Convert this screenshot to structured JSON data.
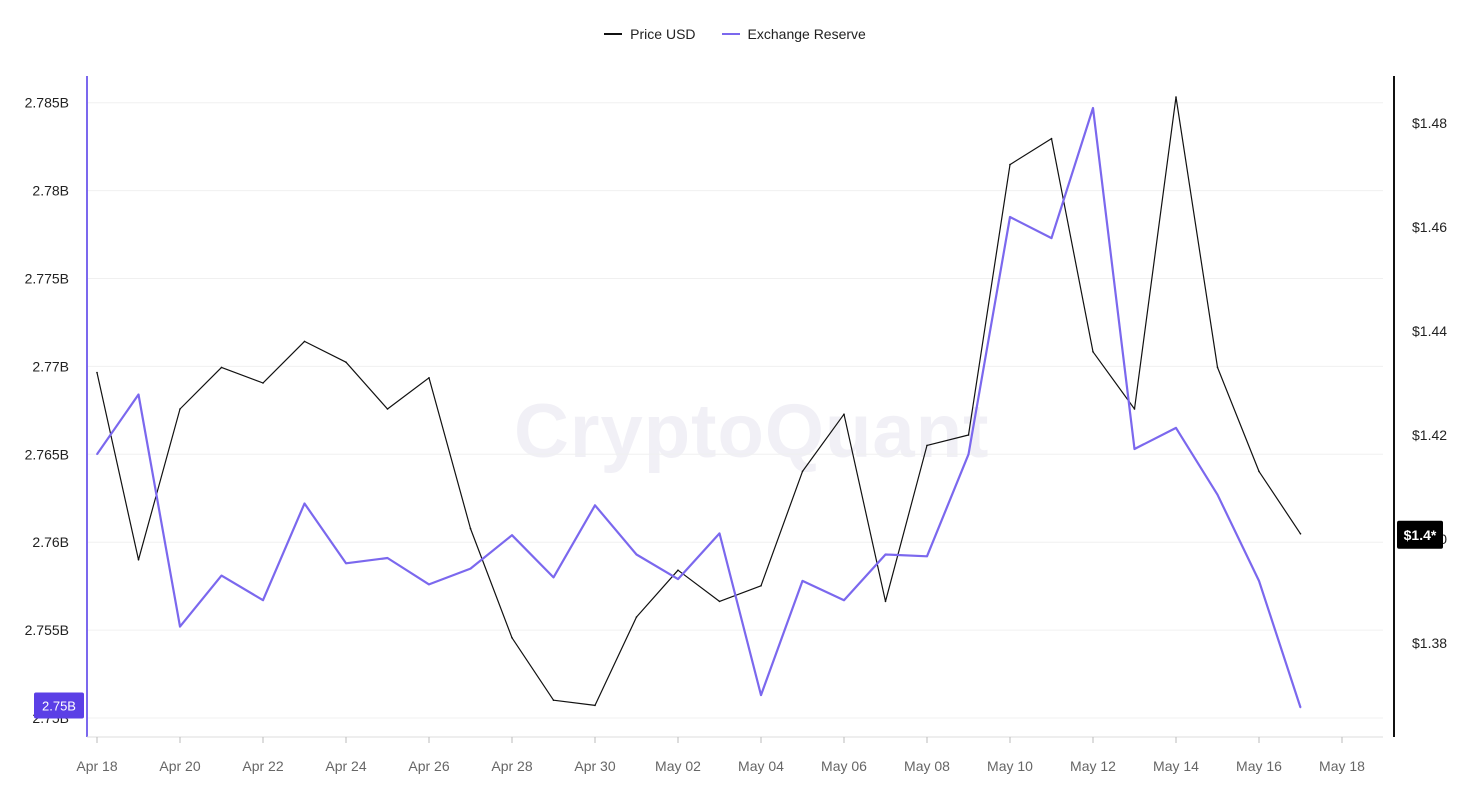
{
  "chart_data": {
    "type": "line",
    "watermark": "CryptoQuant",
    "x": [
      "Apr 18",
      "Apr 19",
      "Apr 20",
      "Apr 21",
      "Apr 22",
      "Apr 23",
      "Apr 24",
      "Apr 25",
      "Apr 26",
      "Apr 27",
      "Apr 28",
      "Apr 29",
      "Apr 30",
      "May 01",
      "May 02",
      "May 03",
      "May 04",
      "May 05",
      "May 06",
      "May 07",
      "May 08",
      "May 09",
      "May 10",
      "May 11",
      "May 12",
      "May 13",
      "May 14",
      "May 15",
      "May 16",
      "May 17"
    ],
    "x_ticks": [
      "Apr 18",
      "Apr 20",
      "Apr 22",
      "Apr 24",
      "Apr 26",
      "Apr 28",
      "Apr 30",
      "May 02",
      "May 04",
      "May 06",
      "May 08",
      "May 10",
      "May 12",
      "May 14",
      "May 16",
      "May 18"
    ],
    "series": [
      {
        "name": "Price USD",
        "axis": "right",
        "color": "#111111",
        "values": [
          1.432,
          1.396,
          1.425,
          1.433,
          1.43,
          1.438,
          1.434,
          1.425,
          1.431,
          1.402,
          1.381,
          1.369,
          1.368,
          1.385,
          1.394,
          1.388,
          1.391,
          1.413,
          1.424,
          1.388,
          1.418,
          1.42,
          1.472,
          1.477,
          1.436,
          1.425,
          1.485,
          1.433,
          1.413,
          1.401
        ]
      },
      {
        "name": "Exchange Reserve",
        "axis": "left",
        "color": "#7b68ee",
        "values": [
          2.765,
          2.7684,
          2.7552,
          2.7581,
          2.7567,
          2.7622,
          2.7588,
          2.7591,
          2.7576,
          2.7585,
          2.7604,
          2.758,
          2.7621,
          2.7593,
          2.7579,
          2.7605,
          2.7513,
          2.7578,
          2.7567,
          2.7593,
          2.7592,
          2.765,
          2.7785,
          2.7773,
          2.7847,
          2.7653,
          2.7665,
          2.7627,
          2.7578,
          2.7506
        ]
      }
    ],
    "y_left": {
      "ticks": [
        "2.75B",
        "2.755B",
        "2.76B",
        "2.765B",
        "2.77B",
        "2.775B",
        "2.78B",
        "2.785B"
      ],
      "tick_values": [
        2.75,
        2.755,
        2.76,
        2.765,
        2.77,
        2.775,
        2.78,
        2.785
      ],
      "current_label": "2.75B",
      "current_color": "#5b3fe6"
    },
    "y_right": {
      "ticks": [
        "$1.38",
        "$1.40",
        "$1.42",
        "$1.44",
        "$1.46",
        "$1.48"
      ],
      "tick_values": [
        1.38,
        1.4,
        1.42,
        1.44,
        1.46,
        1.48
      ],
      "current_label": "$1.4*",
      "current_color": "#000000"
    },
    "legend_position": "top-center",
    "grid": true
  }
}
